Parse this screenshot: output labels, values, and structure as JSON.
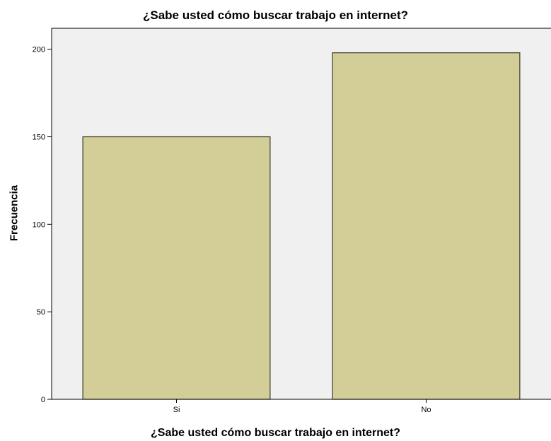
{
  "chart_data": {
    "type": "bar",
    "title": "¿Sabe usted cómo buscar trabajo en internet?",
    "xlabel": "¿Sabe usted cómo buscar trabajo en internet?",
    "ylabel": "Frecuencia",
    "categories": [
      "Si",
      "No"
    ],
    "values": [
      150,
      198
    ],
    "ylim": [
      0,
      212
    ],
    "yticks": [
      0,
      50,
      100,
      150,
      200
    ],
    "grid": false,
    "legend": "none"
  },
  "colors": {
    "plot_background": "#f0f0f0",
    "bar_fill": "#d3ce98",
    "bar_stroke": "#3a3a2a",
    "axis": "#000000"
  }
}
